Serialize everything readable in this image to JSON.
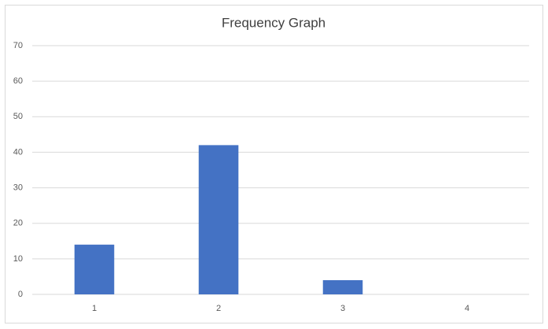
{
  "chart_data": {
    "type": "bar",
    "title": "Frequency Graph",
    "categories": [
      "1",
      "2",
      "3",
      "4"
    ],
    "values": [
      14,
      42,
      4,
      0
    ],
    "color": "#4472c4",
    "ylim": [
      0,
      70
    ],
    "yticks": [
      0,
      10,
      20,
      30,
      40,
      50,
      60,
      70
    ],
    "grid": true
  }
}
